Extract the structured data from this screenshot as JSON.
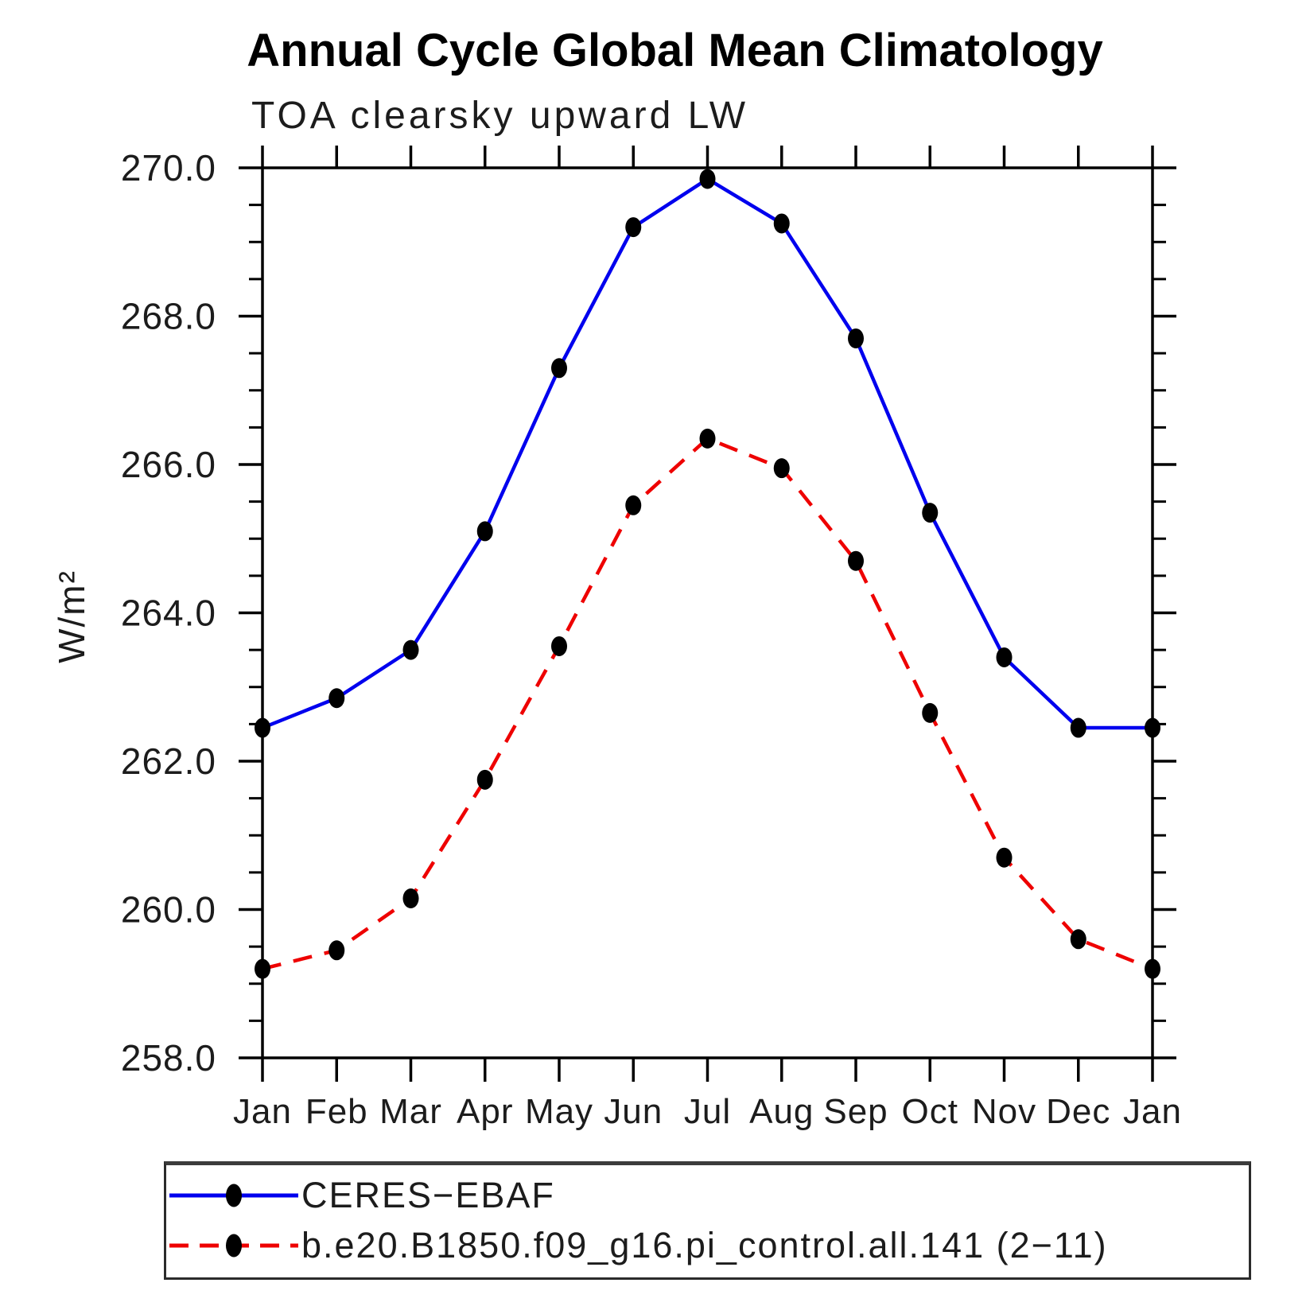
{
  "title": "Annual Cycle Global Mean Climatology",
  "subtitle": "TOA clearsky upward LW",
  "chart_data": {
    "type": "line",
    "title": "Annual Cycle Global Mean Climatology",
    "subtitle": "TOA clearsky upward LW",
    "ylabel": "W/m²",
    "xlabel": "",
    "x_categories": [
      "Jan",
      "Feb",
      "Mar",
      "Apr",
      "May",
      "Jun",
      "Jul",
      "Aug",
      "Sep",
      "Oct",
      "Nov",
      "Dec",
      "Jan"
    ],
    "ylim": [
      258.0,
      270.0
    ],
    "ytick_major_step": 2.0,
    "ytick_minor_step": 0.5,
    "ytick_labels": [
      "270.0",
      "268.0",
      "266.0",
      "264.0",
      "262.0",
      "260.0",
      "258.0"
    ],
    "grid": "off",
    "legend_position": "bottom-left-box",
    "marker": "filled-circle",
    "marker_color": "#000000",
    "frame_color": "#000000",
    "series": [
      {
        "name": "CERES−EBAF",
        "color": "#0000ee",
        "line_style": "solid",
        "values": [
          262.45,
          262.85,
          263.5,
          265.1,
          267.3,
          269.2,
          269.85,
          269.25,
          267.7,
          265.35,
          263.4,
          262.45,
          262.45
        ]
      },
      {
        "name": "b.e20.B1850.f09_g16.pi_control.all.141 (2−11)",
        "color": "#ee0000",
        "line_style": "dashed",
        "values": [
          259.2,
          259.45,
          260.15,
          261.75,
          263.55,
          265.45,
          266.35,
          265.95,
          264.7,
          262.65,
          260.7,
          259.6,
          259.2
        ]
      }
    ]
  }
}
